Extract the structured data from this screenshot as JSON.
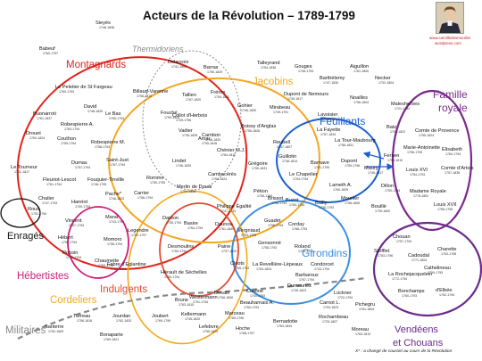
{
  "title": "Acteurs de la Révolution – 1789-1799",
  "website": {
    "line1": "www.camilledesmoulins",
    "line2": "wordpress.com"
  },
  "footnote": "X* : a changé de courant au cours de la Révolution",
  "portrait_icon": "portrait-icon",
  "colors": {
    "montagnards": "#e2231a",
    "jacobins": "#f5a623",
    "feuillants": "#1a5fd0",
    "famille": "#7a2a8c",
    "girondins": "#3b8fe0",
    "vendeens": "#6a2b8a",
    "cordeliers": "#f2a91c",
    "hebertistes": "#d01c7a",
    "indulgents": "#e64a2e",
    "enrages": "#111111",
    "thermidoriens": "#888888",
    "militaires": "#888888"
  },
  "groups": [
    {
      "name": "Thermidoriens",
      "key": "thermidoriens"
    },
    {
      "name": "Montagnards",
      "key": "montagnards"
    },
    {
      "name": "Jacobins",
      "key": "jacobins"
    },
    {
      "name": "Feuillants",
      "key": "feuillants"
    },
    {
      "name": "Famille",
      "key": "famille"
    },
    {
      "name": "royale",
      "key": "famille"
    },
    {
      "name": "Enragés",
      "key": "enrages"
    },
    {
      "name": "Girondins",
      "key": "girondins"
    },
    {
      "name": "Hébertistes",
      "key": "hebertistes"
    },
    {
      "name": "Indulgents",
      "key": "indulgents"
    },
    {
      "name": "Cordeliers",
      "key": "cordeliers"
    },
    {
      "name": "Vendéens",
      "key": "vendeens"
    },
    {
      "name": "et Chouans",
      "key": "vendeens"
    },
    {
      "name": "Militaires",
      "key": "militaires"
    }
  ],
  "people": [
    {
      "name": "Sieyès",
      "dates": "1748-1836"
    },
    {
      "name": "Babeuf",
      "dates": "1760-1797"
    },
    {
      "name": "Le Peletier de St Fargeau",
      "dates": "1760-1793"
    },
    {
      "name": "Buonarroti",
      "dates": "1761-1837"
    },
    {
      "name": "David",
      "dates": "1748-1825"
    },
    {
      "name": "Robespierre A.",
      "dates": "1763-1794"
    },
    {
      "name": "Le Bas",
      "dates": "1765-1794"
    },
    {
      "name": "Drouet",
      "dates": "1763-1824"
    },
    {
      "name": "Couthon",
      "dates": "1755-1794"
    },
    {
      "name": "Robespierre M.",
      "dates": "1758-1794"
    },
    {
      "name": "Saint-Just",
      "dates": "1767-1794"
    },
    {
      "name": "Dumas",
      "dates": "1757-1794"
    },
    {
      "name": "Le Tourneur",
      "dates": "1751-1817"
    },
    {
      "name": "Fleuriot-Lescot",
      "dates": "1761-1794"
    },
    {
      "name": "Fouquier-Tinville",
      "dates": "1746-1795"
    },
    {
      "name": "Romme",
      "dates": "1750-1795"
    },
    {
      "name": "Pache*",
      "dates": "1746-1823"
    },
    {
      "name": "Carrier",
      "dates": "1756-1794"
    },
    {
      "name": "Chalier",
      "dates": "1747-1793"
    },
    {
      "name": "Hanriot",
      "dates": "1759-1794"
    },
    {
      "name": "Roux",
      "dates": "1752-1794"
    },
    {
      "name": "Delacroix",
      "dates": "1741-1805"
    },
    {
      "name": "Barras",
      "dates": "1755-1829"
    },
    {
      "name": "Billaud-Varenne",
      "dates": "1756-1819"
    },
    {
      "name": "Tallien",
      "dates": "1767-1820"
    },
    {
      "name": "Fréron",
      "dates": "1754-1802"
    },
    {
      "name": "Fouché",
      "dates": "1759-1820"
    },
    {
      "name": "Collot d'Herbois",
      "dates": "1749-1796"
    },
    {
      "name": "Vadier",
      "dates": "1736-1828"
    },
    {
      "name": "Amar",
      "dates": "1755-1816"
    },
    {
      "name": "Lindet",
      "dates": "1746-1825"
    },
    {
      "name": "Cambon",
      "dates": "1756-1820"
    },
    {
      "name": "Talleyrand",
      "dates": "1754-1838"
    },
    {
      "name": "Gouges",
      "dates": "1748-1793"
    },
    {
      "name": "Aiguillon",
      "dates": "1761-1800"
    },
    {
      "name": "Barthélemy",
      "dates": "1747-1830"
    },
    {
      "name": "Necker",
      "dates": "1732-1804"
    },
    {
      "name": "Dupont de Nemours",
      "dates": "1739-1817"
    },
    {
      "name": "Noailles",
      "dates": "1756-1804"
    },
    {
      "name": "Malesherbes",
      "dates": "1721-1794"
    },
    {
      "name": "Gohier",
      "dates": "1746-1830"
    },
    {
      "name": "Mirabeau",
      "dates": "1749-1791"
    },
    {
      "name": "Lavoisier",
      "dates": "1743-1794"
    },
    {
      "name": "Boissy d'Anglas",
      "dates": "1756-1826"
    },
    {
      "name": "La Fayette",
      "dates": "1757-1834"
    },
    {
      "name": "Reubell",
      "dates": "1747-1807"
    },
    {
      "name": "La Tour-Maubourg",
      "dates": "1756-1831"
    },
    {
      "name": "Chénier M.J.",
      "dates": "1764-1811"
    },
    {
      "name": "Guillotin",
      "dates": "1738-1814"
    },
    {
      "name": "Grégoire",
      "dates": "1750-1831"
    },
    {
      "name": "Barnave",
      "dates": "1761-1793"
    },
    {
      "name": "Dupont",
      "dates": "1759-1796"
    },
    {
      "name": "Le Chapelier",
      "dates": "1754-1794"
    },
    {
      "name": "Lameth A.",
      "dates": "1760-1829"
    },
    {
      "name": "Cambacérès",
      "dates": "1753-1824"
    },
    {
      "name": "Merlin de Douai",
      "dates": "1754-1838"
    },
    {
      "name": "Bailly",
      "dates": "1736-1793"
    },
    {
      "name": "Mounier",
      "dates": "1758-1806"
    },
    {
      "name": "Batz",
      "dates": "1754-1822"
    },
    {
      "name": "Comte de Provence",
      "dates": "1755-1824"
    },
    {
      "name": "Marie-Antoinette",
      "dates": "1755-1793"
    },
    {
      "name": "Elisabeth",
      "dates": "1764-1794"
    },
    {
      "name": "Fersen",
      "dates": "1755-1810"
    },
    {
      "name": "Maury",
      "dates": "1746-1817"
    },
    {
      "name": "Louis XVI",
      "dates": "1754-1793"
    },
    {
      "name": "Comte d'Artois",
      "dates": "1757-1836"
    },
    {
      "name": "Dillon",
      "dates": "1750-1794"
    },
    {
      "name": "Madame Royale",
      "dates": "1778-1851"
    },
    {
      "name": "Bouillé",
      "dates": "1739-1800"
    },
    {
      "name": "Louis XVII",
      "dates": "1785-1795"
    },
    {
      "name": "Philippe Égalité",
      "dates": "1747-1793"
    },
    {
      "name": "Pétion",
      "dates": "1756-1794"
    },
    {
      "name": "Brissot",
      "dates": "1754-1793"
    },
    {
      "name": "Buzot",
      "dates": "1760-1794"
    },
    {
      "name": "Vincent",
      "dates": "1767-1794"
    },
    {
      "name": "Marat",
      "dates": "1743-1793"
    },
    {
      "name": "Danton",
      "dates": "1759-1794"
    },
    {
      "name": "Basire",
      "dates": "1764-1794"
    },
    {
      "name": "Daunou",
      "dates": "1761-1840"
    },
    {
      "name": "Vergniaud",
      "dates": "1753-1793"
    },
    {
      "name": "Guadet",
      "dates": "1758-1794"
    },
    {
      "name": "Corday",
      "dates": "1768-1793"
    },
    {
      "name": "Hébert",
      "dates": "1757-1794"
    },
    {
      "name": "Momoro",
      "dates": "1756-1794"
    },
    {
      "name": "Legendre",
      "dates": "1752-1797"
    },
    {
      "name": "Desmoulins",
      "dates": "1760-1794"
    },
    {
      "name": "Paine",
      "dates": "1737-1809"
    },
    {
      "name": "Gensonné",
      "dates": "1758-1793"
    },
    {
      "name": "Roland",
      "dates": "1734-1793"
    },
    {
      "name": "Ronsin",
      "dates": "1751-1794"
    },
    {
      "name": "Chaumette",
      "dates": "1763-1794"
    },
    {
      "name": "Fabre d'Eglantine",
      "dates": "1750-1794"
    },
    {
      "name": "Cloots",
      "dates": "1755-1794"
    },
    {
      "name": "La Revellière-Lépeaux",
      "dates": "1753-1824"
    },
    {
      "name": "Condorcet",
      "dates": "1743-1794"
    },
    {
      "name": "Hérault de Séchelles",
      "dates": "1759-1794"
    },
    {
      "name": "Barbaroux",
      "dates": "1767-1794"
    },
    {
      "name": "Dumouriez",
      "dates": "1739-1823"
    },
    {
      "name": "Brune",
      "dates": "1763-1815"
    },
    {
      "name": "Westermann",
      "dates": "1751-1794"
    },
    {
      "name": "Desaix",
      "dates": "1768-1800"
    },
    {
      "name": "Custine",
      "dates": "1740-1793"
    },
    {
      "name": "Lückner",
      "dates": "1722-1794"
    },
    {
      "name": "Beauharnais A.",
      "dates": "1760-1794"
    },
    {
      "name": "Carnot L.",
      "dates": "1753-1823"
    },
    {
      "name": "Pichegru",
      "dates": "1761-1804"
    },
    {
      "name": "Kellermann",
      "dates": "1735-1820"
    },
    {
      "name": "Marceau",
      "dates": "1769-1796"
    },
    {
      "name": "Bernadotte",
      "dates": "1763-1844"
    },
    {
      "name": "Rochambeau",
      "dates": "1725-1807"
    },
    {
      "name": "Turreau",
      "dates": "1756-1816"
    },
    {
      "name": "Jourdan",
      "dates": "1762-1833"
    },
    {
      "name": "Joubert",
      "dates": "1769-1799"
    },
    {
      "name": "Lefebvre",
      "dates": "1755-1820"
    },
    {
      "name": "Hoche",
      "dates": "1768-1797"
    },
    {
      "name": "Moreau",
      "dates": "1763-1813"
    },
    {
      "name": "Santerre",
      "dates": "1752-1809"
    },
    {
      "name": "Bonaparte",
      "dates": "1769-1821"
    },
    {
      "name": "Chouan",
      "dates": "1757-1794"
    },
    {
      "name": "Charette",
      "dates": "1763-1796"
    },
    {
      "name": "Stofflet",
      "dates": "1753-1796"
    },
    {
      "name": "Cadoudal",
      "dates": "1771-1804"
    },
    {
      "name": "Cathelineau",
      "dates": "1759-1793"
    },
    {
      "name": "La Rochejacquelein",
      "dates": "1772-1794"
    },
    {
      "name": "Bonchamps",
      "dates": "1760-1793"
    },
    {
      "name": "d'Elbée",
      "dates": "1752-1794"
    }
  ]
}
